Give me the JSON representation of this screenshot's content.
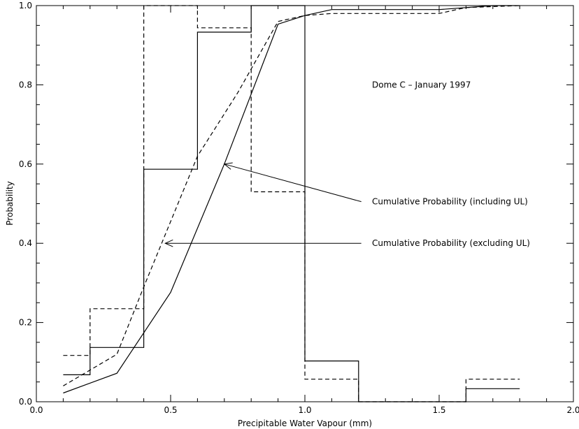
{
  "chart_data": {
    "type": "line",
    "title": "",
    "xlabel": "Precipitable Water Vapour (mm)",
    "ylabel": "Probability",
    "xlim": [
      0.0,
      2.0
    ],
    "ylim": [
      0.0,
      1.0
    ],
    "x_ticks": [
      0.0,
      0.5,
      1.0,
      1.5,
      2.0
    ],
    "x_tick_labels": [
      "0.0",
      "0.5",
      "1.0",
      "1.5",
      "2.0"
    ],
    "y_ticks": [
      0.0,
      0.2,
      0.4,
      0.6,
      0.8,
      1.0
    ],
    "y_tick_labels": [
      "0.0",
      "0.2",
      "0.4",
      "0.6",
      "0.8",
      "1.0"
    ],
    "grid": false,
    "series": [
      {
        "style": "solid",
        "kind": "histogram",
        "bin_edges": [
          0.1,
          0.2,
          0.4,
          0.6,
          0.8,
          1.0,
          1.2,
          1.6,
          1.8
        ],
        "values": [
          0.068,
          0.137,
          0.587,
          0.933,
          1.0,
          0.103,
          0.0,
          0.033
        ]
      },
      {
        "style": "dashed",
        "kind": "histogram",
        "bin_edges": [
          0.1,
          0.2,
          0.4,
          0.6,
          0.8,
          1.0,
          1.2,
          1.6,
          1.8
        ],
        "values": [
          0.117,
          0.235,
          1.0,
          0.944,
          0.53,
          0.057,
          0.0,
          0.057
        ]
      },
      {
        "style": "solid",
        "kind": "cumulative",
        "x": [
          0.1,
          0.3,
          0.5,
          0.7,
          0.9,
          1.0,
          1.1,
          1.5,
          1.7,
          1.8
        ],
        "y": [
          0.022,
          0.072,
          0.276,
          0.6,
          0.953,
          0.975,
          0.99,
          0.99,
          1.0,
          1.0
        ]
      },
      {
        "style": "dashed",
        "kind": "cumulative",
        "x": [
          0.1,
          0.3,
          0.4,
          0.6,
          0.75,
          0.9,
          1.0,
          1.1,
          1.5,
          1.6,
          1.8
        ],
        "y": [
          0.04,
          0.12,
          0.29,
          0.62,
          0.78,
          0.96,
          0.975,
          0.98,
          0.98,
          0.995,
          1.0
        ]
      }
    ],
    "annotations": [
      {
        "id": "dome",
        "text": "Dome C – January 1997",
        "x": 1.25,
        "y": 0.8
      },
      {
        "id": "incl",
        "text": "Cumulative Probability (including UL)",
        "x": 1.25,
        "y": 0.505,
        "arrow_from": [
          1.21,
          0.505
        ],
        "arrow_to": [
          0.7,
          0.6
        ]
      },
      {
        "id": "excl",
        "text": "Cumulative Probability (excluding UL)",
        "x": 1.25,
        "y": 0.4,
        "arrow_from": [
          1.21,
          0.4
        ],
        "arrow_to": [
          0.48,
          0.4
        ]
      }
    ]
  }
}
